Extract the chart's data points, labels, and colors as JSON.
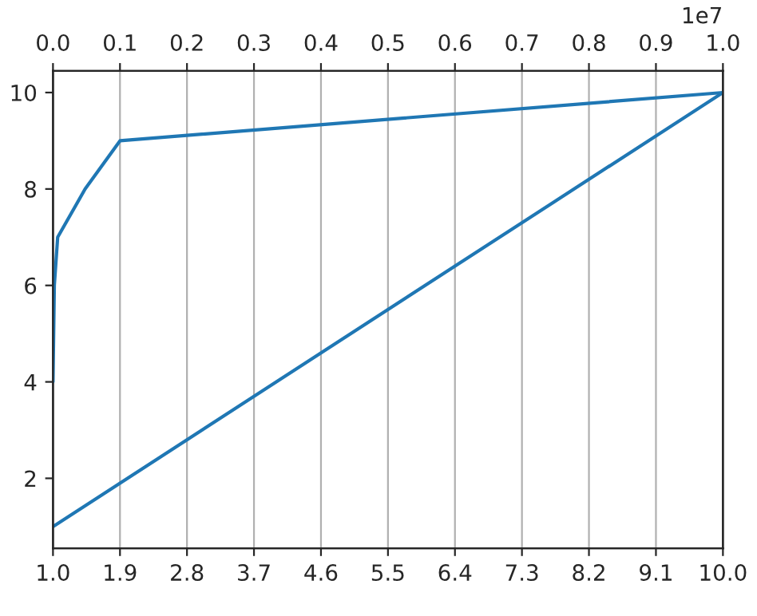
{
  "chart_data": {
    "type": "line",
    "xlim": [
      1,
      10
    ],
    "xticks": [
      {
        "value": 1,
        "label": "1.0"
      },
      {
        "value": 1.9,
        "label": "1.9"
      },
      {
        "value": 2.8,
        "label": "2.8"
      },
      {
        "value": 3.7,
        "label": "3.7"
      },
      {
        "value": 4.6,
        "label": "4.6"
      },
      {
        "value": 5.5,
        "label": "5.5"
      },
      {
        "value": 6.4,
        "label": "6.4"
      },
      {
        "value": 7.3,
        "label": "7.3"
      },
      {
        "value": 8.2,
        "label": "8.2"
      },
      {
        "value": 9.1,
        "label": "9.1"
      },
      {
        "value": 10,
        "label": "10.0"
      }
    ],
    "x2lim": [
      0,
      1
    ],
    "x2ticks": [
      {
        "value": 0,
        "label": "0.0"
      },
      0.1,
      0.2,
      0.3,
      0.4,
      0.5,
      0.6,
      0.7,
      0.8,
      0.9,
      {
        "value": 1,
        "label": "1.0"
      }
    ],
    "ylim": [
      0.55,
      10.45
    ],
    "yticks": [
      2,
      4,
      6,
      8,
      10
    ],
    "series": [
      {
        "color": "#1f77b4",
        "x": [
          1,
          10
        ],
        "values": [
          1,
          10
        ]
      },
      {
        "color": "#1f77b4",
        "axis": "x2",
        "x": [
          0,
          0.002,
          0.007,
          0.048,
          0.1,
          1
        ],
        "values": [
          4,
          6,
          7,
          8,
          9,
          10
        ]
      }
    ],
    "annotations": [
      "1e7"
    ],
    "grid": "x",
    "marker": "none",
    "line_style": "solid"
  }
}
